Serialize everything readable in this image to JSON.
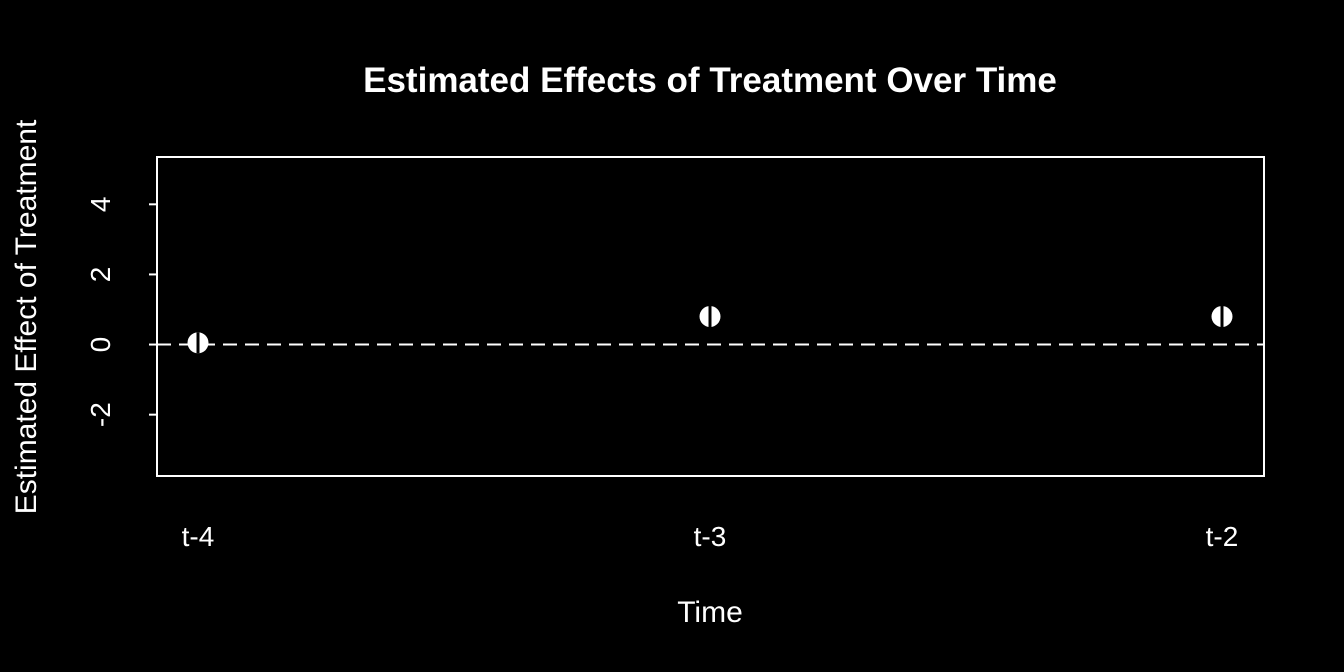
{
  "chart_data": {
    "type": "scatter",
    "title": "Estimated Effects of Treatment Over Time",
    "xlabel": "Time",
    "ylabel": "Estimated Effect of Treatment",
    "categories": [
      "t-4",
      "t-3",
      "t-2"
    ],
    "series": [
      {
        "values": [
          0.05,
          0.8,
          0.8
        ]
      }
    ],
    "yticks": [
      -2,
      0,
      2,
      4
    ],
    "ylim": [
      -3.75,
      5.35
    ],
    "reference_line": 0,
    "grid": false,
    "legend": "none",
    "colors": {
      "background": "#000000",
      "foreground": "#ffffff"
    }
  }
}
